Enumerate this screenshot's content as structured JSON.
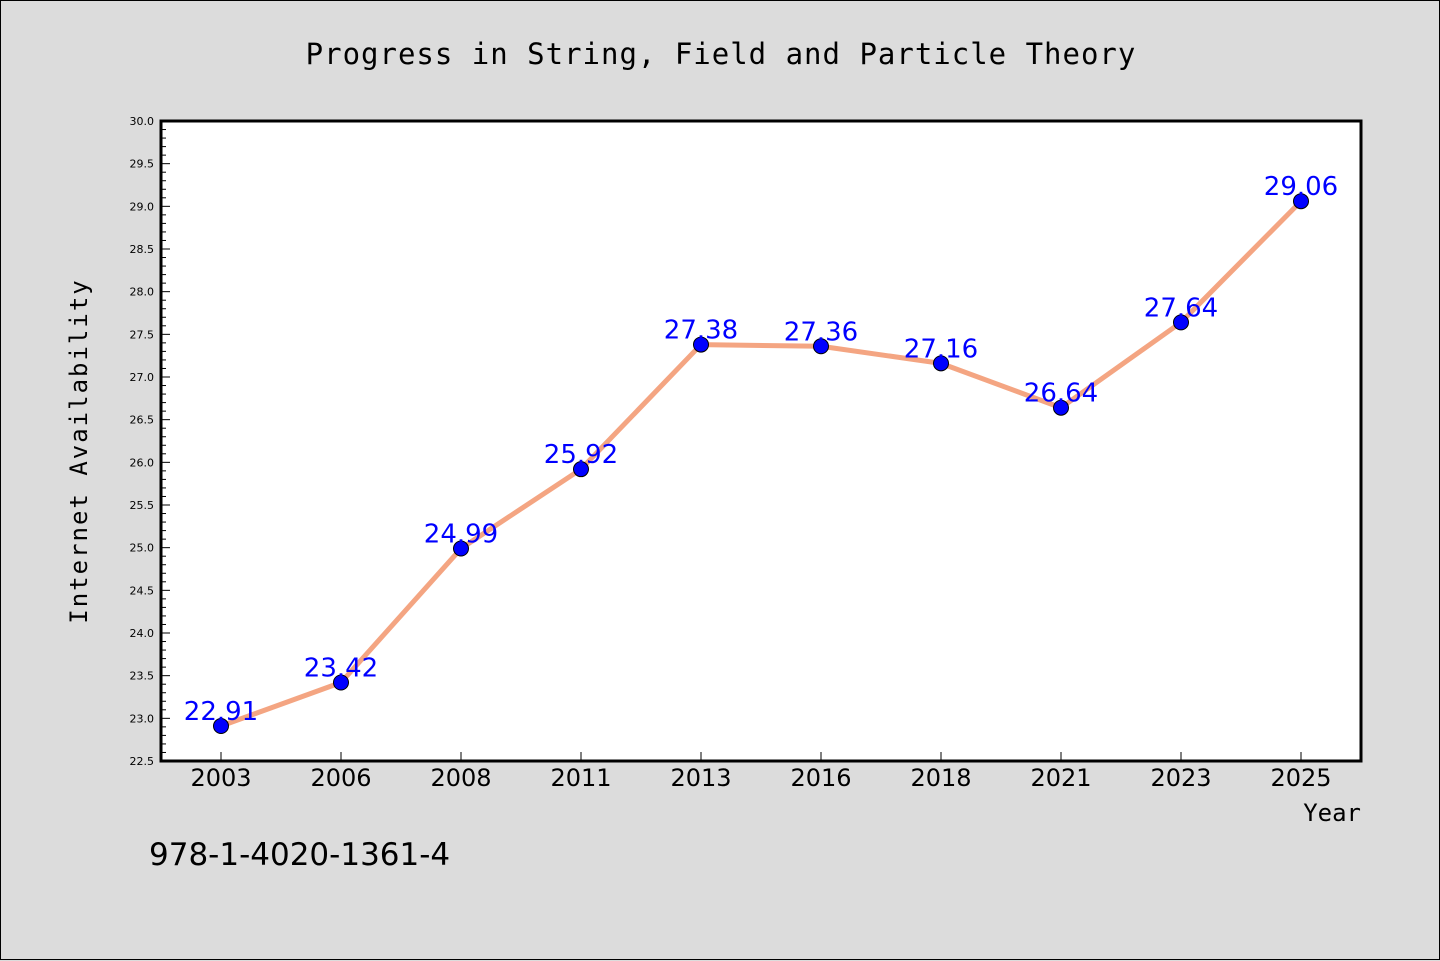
{
  "chart_data": {
    "type": "line",
    "title": "Progress in String, Field and Particle Theory",
    "xlabel": "Year",
    "ylabel": "Internet Availability",
    "x": [
      "2003",
      "2006",
      "2008",
      "2011",
      "2013",
      "2016",
      "2018",
      "2021",
      "2023",
      "2025"
    ],
    "series": [
      {
        "values": [
          22.91,
          23.42,
          24.99,
          25.92,
          27.38,
          27.36,
          27.16,
          26.64,
          27.64,
          29.06
        ],
        "labels": [
          "22.91",
          "23.42",
          "24.99",
          "25.92",
          "27.38",
          "27.36",
          "27.16",
          "26.64",
          "27.64",
          "29.06"
        ],
        "line_color": "#f4a582",
        "marker_color": "#0000ff"
      }
    ],
    "ylim": [
      22.5,
      30.0
    ],
    "yticks": [
      "22.5",
      "23.0",
      "23.5",
      "24.0",
      "24.5",
      "25.0",
      "25.5",
      "26.0",
      "26.5",
      "27.0",
      "27.5",
      "28.0",
      "28.5",
      "29.0",
      "29.5",
      "30.0"
    ],
    "grid": false,
    "legend": "none"
  },
  "footer": {
    "isbn": "978-1-4020-1361-4"
  }
}
